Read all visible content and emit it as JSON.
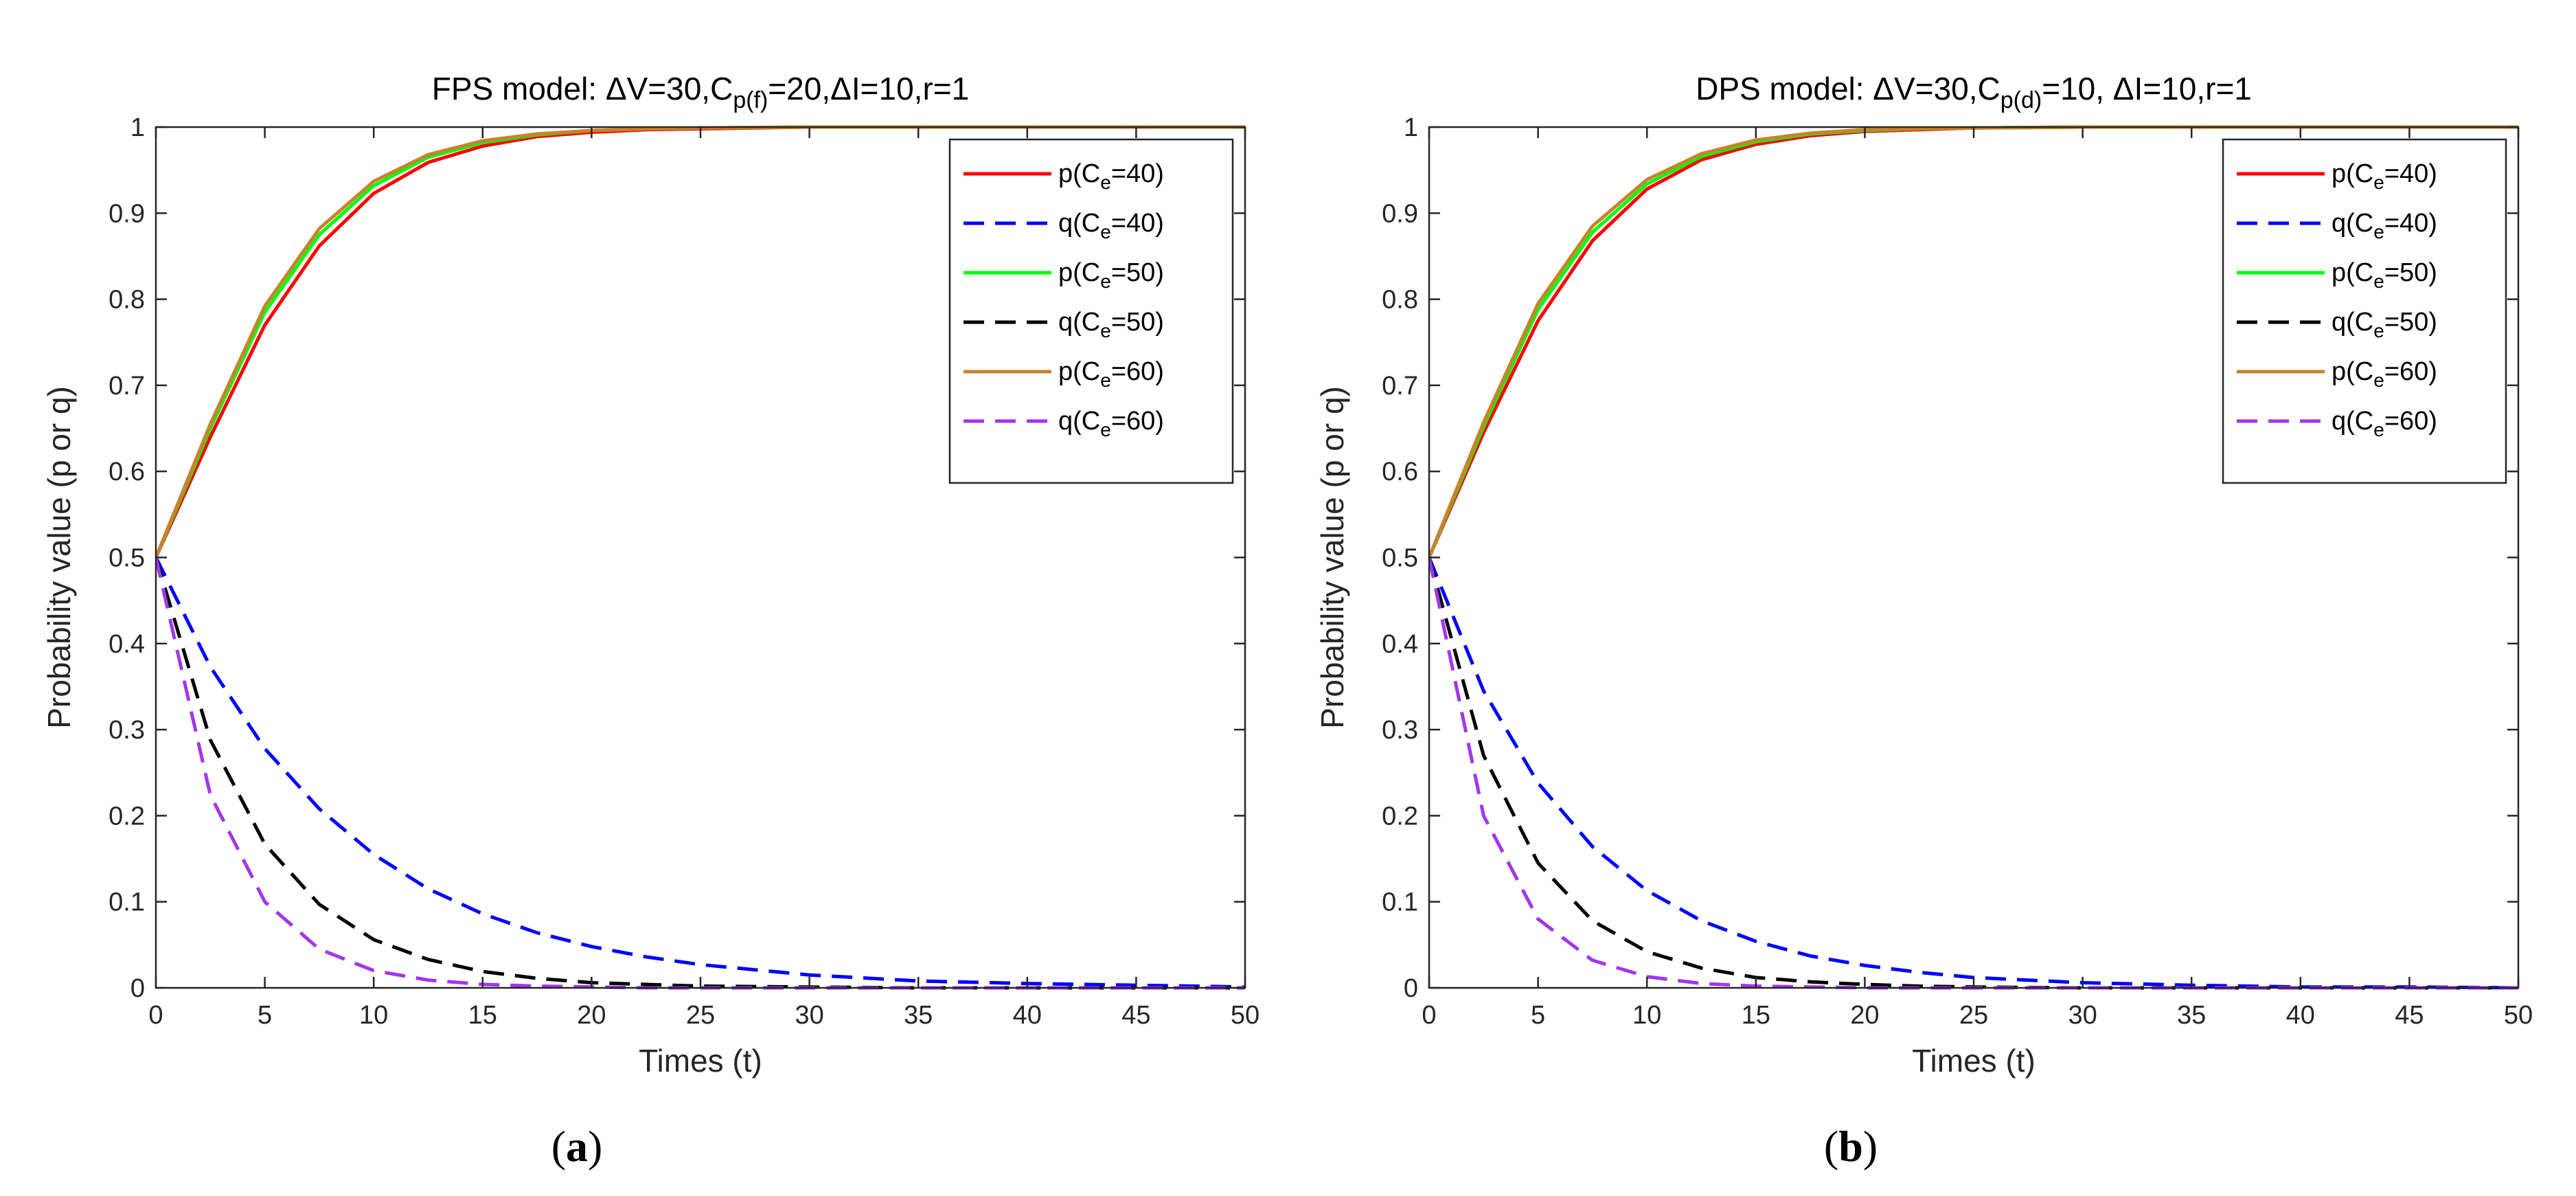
{
  "chart_data": [
    {
      "type": "line",
      "panel": "a",
      "title_parts": {
        "pre": "FPS model: ΔV=30,C",
        "sub": "p(f)",
        "post": "=20,ΔI=10,r=1"
      },
      "title": "FPS model: ΔV=30,Cp(f)=20,ΔI=10,r=1",
      "caption": {
        "open": "(",
        "letter": "a",
        "close": ")"
      },
      "xlabel": "Times (t)",
      "ylabel": "Probability value (p or q)",
      "xlim": [
        0,
        50
      ],
      "ylim": [
        0,
        1
      ],
      "xticks": [
        "0",
        "5",
        "10",
        "15",
        "20",
        "25",
        "30",
        "35",
        "40",
        "45",
        "50"
      ],
      "yticks": [
        "0",
        "0.1",
        "0.2",
        "0.3",
        "0.4",
        "0.5",
        "0.6",
        "0.7",
        "0.8",
        "0.9",
        "1"
      ],
      "grid": false,
      "legend_position": "top-right",
      "series": [
        {
          "name": "p(Ce=40)",
          "legend_pre": "p(C",
          "legend_sub": "e",
          "legend_post": "=40)",
          "color": "#ff0000",
          "style": "solid",
          "x": [
            0,
            2.5,
            5,
            7.5,
            10,
            12.5,
            15,
            17.5,
            20,
            22.5,
            25,
            30,
            35,
            40,
            45,
            50
          ],
          "values": [
            0.5,
            0.64,
            0.77,
            0.862,
            0.923,
            0.959,
            0.978,
            0.989,
            0.994,
            0.997,
            0.998,
            1.0,
            1.0,
            1.0,
            1.0,
            1.0
          ]
        },
        {
          "name": "q(Ce=40)",
          "legend_pre": "q(C",
          "legend_sub": "e",
          "legend_post": "=40)",
          "color": "#0000ff",
          "style": "dashed",
          "x": [
            0,
            2.5,
            5,
            7.5,
            10,
            12.5,
            15,
            17.5,
            20,
            22.5,
            25,
            30,
            35,
            40,
            45,
            50
          ],
          "values": [
            0.5,
            0.373,
            0.278,
            0.208,
            0.155,
            0.115,
            0.086,
            0.064,
            0.048,
            0.036,
            0.027,
            0.015,
            0.008,
            0.005,
            0.003,
            0.001
          ]
        },
        {
          "name": "p(Ce=50)",
          "legend_pre": "p(C",
          "legend_sub": "e",
          "legend_post": "=50)",
          "color": "#00ff00",
          "style": "solid",
          "x": [
            0,
            2.5,
            5,
            7.5,
            10,
            12.5,
            15,
            17.5,
            20,
            22.5,
            25,
            30,
            35,
            40,
            45,
            50
          ],
          "values": [
            0.5,
            0.65,
            0.785,
            0.875,
            0.932,
            0.965,
            0.982,
            0.991,
            0.996,
            0.998,
            0.999,
            1.0,
            1.0,
            1.0,
            1.0,
            1.0
          ]
        },
        {
          "name": "q(Ce=50)",
          "legend_pre": "q(C",
          "legend_sub": "e",
          "legend_post": "=50)",
          "color": "#000000",
          "style": "dashed",
          "x": [
            0,
            2.5,
            5,
            7.5,
            10,
            12.5,
            15,
            17.5,
            20,
            22.5,
            25,
            30,
            35,
            40,
            45,
            50
          ],
          "values": [
            0.5,
            0.288,
            0.167,
            0.097,
            0.056,
            0.033,
            0.019,
            0.011,
            0.006,
            0.004,
            0.002,
            0.001,
            0.0,
            0.0,
            0.0,
            0.0
          ]
        },
        {
          "name": "p(Ce=60)",
          "legend_pre": "p(C",
          "legend_sub": "e",
          "legend_post": "=60)",
          "color": "#c8822f",
          "style": "solid",
          "x": [
            0,
            2.5,
            5,
            7.5,
            10,
            12.5,
            15,
            17.5,
            20,
            22.5,
            25,
            30,
            35,
            40,
            45,
            50
          ],
          "values": [
            0.5,
            0.655,
            0.792,
            0.882,
            0.937,
            0.968,
            0.984,
            0.992,
            0.996,
            0.998,
            0.999,
            1.0,
            1.0,
            1.0,
            1.0,
            1.0
          ]
        },
        {
          "name": "q(Ce=60)",
          "legend_pre": "q(C",
          "legend_sub": "e",
          "legend_post": "=60)",
          "color": "#a335ee",
          "style": "dashed",
          "x": [
            0,
            2.5,
            5,
            7.5,
            10,
            12.5,
            15,
            17.5,
            20,
            22.5,
            25,
            30,
            35,
            40,
            45,
            50
          ],
          "values": [
            0.5,
            0.224,
            0.1,
            0.045,
            0.02,
            0.009,
            0.004,
            0.002,
            0.001,
            0.0,
            0.0,
            0.0,
            0.0,
            0.0,
            0.0,
            0.0
          ]
        }
      ]
    },
    {
      "type": "line",
      "panel": "b",
      "title_parts": {
        "pre": "DPS model: ΔV=30,C",
        "sub": "p(d)",
        "post": "=10, ΔI=10,r=1"
      },
      "title": "DPS model: ΔV=30,Cp(d)=10, ΔI=10,r=1",
      "caption": {
        "open": "(",
        "letter": "b",
        "close": ")"
      },
      "xlabel": "Times (t)",
      "ylabel": "Probability value (p or q)",
      "xlim": [
        0,
        50
      ],
      "ylim": [
        0,
        1
      ],
      "xticks": [
        "0",
        "5",
        "10",
        "15",
        "20",
        "25",
        "30",
        "35",
        "40",
        "45",
        "50"
      ],
      "yticks": [
        "0",
        "0.1",
        "0.2",
        "0.3",
        "0.4",
        "0.5",
        "0.6",
        "0.7",
        "0.8",
        "0.9",
        "1"
      ],
      "grid": false,
      "legend_position": "top-right",
      "series": [
        {
          "name": "p(Ce=40)",
          "legend_pre": "p(C",
          "legend_sub": "e",
          "legend_post": "=40)",
          "color": "#ff0000",
          "style": "solid",
          "x": [
            0,
            2.5,
            5,
            7.5,
            10,
            12.5,
            15,
            17.5,
            20,
            22.5,
            25,
            30,
            35,
            40,
            45,
            50
          ],
          "values": [
            0.5,
            0.645,
            0.775,
            0.868,
            0.928,
            0.962,
            0.98,
            0.99,
            0.995,
            0.997,
            0.999,
            1.0,
            1.0,
            1.0,
            1.0,
            1.0
          ]
        },
        {
          "name": "q(Ce=40)",
          "legend_pre": "q(C",
          "legend_sub": "e",
          "legend_post": "=40)",
          "color": "#0000ff",
          "style": "dashed",
          "x": [
            0,
            2.5,
            5,
            7.5,
            10,
            12.5,
            15,
            17.5,
            20,
            22.5,
            25,
            30,
            35,
            40,
            45,
            50
          ],
          "values": [
            0.5,
            0.345,
            0.238,
            0.164,
            0.113,
            0.078,
            0.054,
            0.037,
            0.026,
            0.018,
            0.012,
            0.006,
            0.003,
            0.001,
            0.001,
            0.0
          ]
        },
        {
          "name": "p(Ce=50)",
          "legend_pre": "p(C",
          "legend_sub": "e",
          "legend_post": "=50)",
          "color": "#00ff00",
          "style": "solid",
          "x": [
            0,
            2.5,
            5,
            7.5,
            10,
            12.5,
            15,
            17.5,
            20,
            22.5,
            25,
            30,
            35,
            40,
            45,
            50
          ],
          "values": [
            0.5,
            0.652,
            0.788,
            0.878,
            0.934,
            0.966,
            0.983,
            0.992,
            0.996,
            0.998,
            0.999,
            1.0,
            1.0,
            1.0,
            1.0,
            1.0
          ]
        },
        {
          "name": "q(Ce=50)",
          "legend_pre": "q(C",
          "legend_sub": "e",
          "legend_post": "=50)",
          "color": "#000000",
          "style": "dashed",
          "x": [
            0,
            2.5,
            5,
            7.5,
            10,
            12.5,
            15,
            17.5,
            20,
            22.5,
            25,
            30,
            35,
            40,
            45,
            50
          ],
          "values": [
            0.5,
            0.27,
            0.145,
            0.078,
            0.042,
            0.023,
            0.012,
            0.007,
            0.004,
            0.002,
            0.001,
            0.0,
            0.0,
            0.0,
            0.0,
            0.0
          ]
        },
        {
          "name": "p(Ce=60)",
          "legend_pre": "p(C",
          "legend_sub": "e",
          "legend_post": "=60)",
          "color": "#c8822f",
          "style": "solid",
          "x": [
            0,
            2.5,
            5,
            7.5,
            10,
            12.5,
            15,
            17.5,
            20,
            22.5,
            25,
            30,
            35,
            40,
            45,
            50
          ],
          "values": [
            0.5,
            0.657,
            0.795,
            0.885,
            0.939,
            0.969,
            0.985,
            0.993,
            0.997,
            0.998,
            0.999,
            1.0,
            1.0,
            1.0,
            1.0,
            1.0
          ]
        },
        {
          "name": "q(Ce=60)",
          "legend_pre": "q(C",
          "legend_sub": "e",
          "legend_post": "=60)",
          "color": "#a335ee",
          "style": "dashed",
          "x": [
            0,
            2.5,
            5,
            7.5,
            10,
            12.5,
            15,
            17.5,
            20,
            22.5,
            25,
            30,
            35,
            40,
            45,
            50
          ],
          "values": [
            0.5,
            0.2,
            0.08,
            0.032,
            0.013,
            0.005,
            0.002,
            0.001,
            0.0,
            0.0,
            0.0,
            0.0,
            0.0,
            0.0,
            0.0,
            0.0
          ]
        }
      ]
    }
  ]
}
